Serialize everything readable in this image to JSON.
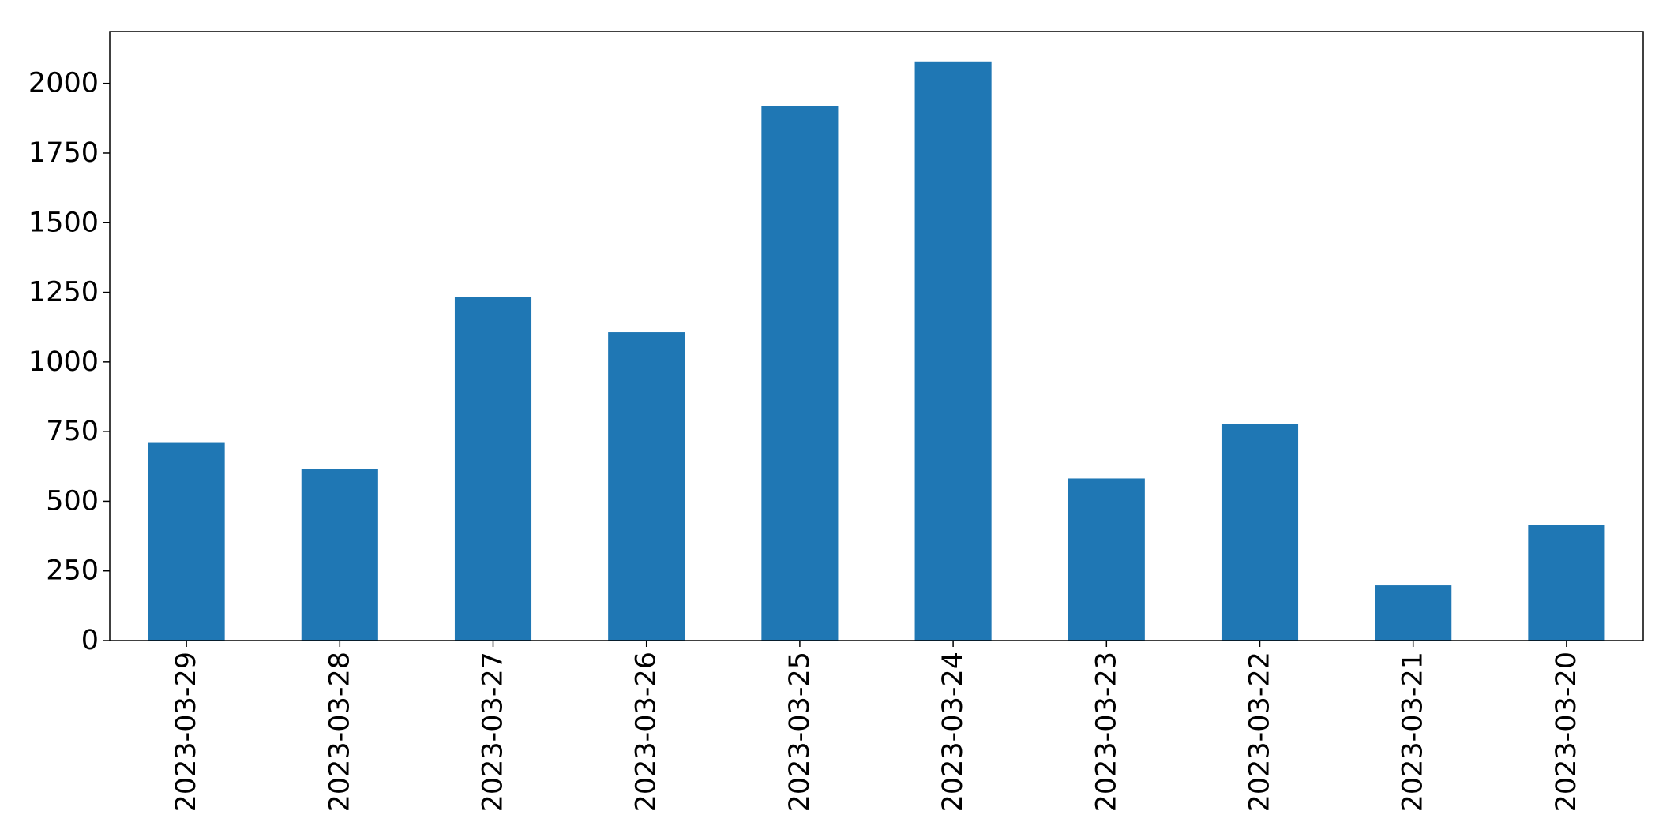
{
  "chart_data": {
    "type": "bar",
    "title": "",
    "xlabel": "",
    "ylabel": "",
    "categories": [
      "2023-03-29",
      "2023-03-28",
      "2023-03-27",
      "2023-03-26",
      "2023-03-25",
      "2023-03-24",
      "2023-03-23",
      "2023-03-22",
      "2023-03-21",
      "2023-03-20"
    ],
    "values": [
      712,
      617,
      1232,
      1107,
      1918,
      2079,
      582,
      778,
      198,
      414
    ],
    "ylim": [
      0,
      2186
    ],
    "yticks": [
      0,
      250,
      500,
      750,
      1000,
      1250,
      1500,
      1750,
      2000
    ],
    "grid": false,
    "legend": "none",
    "bar_color": "#1f77b4",
    "x_tick_rotation": "vertical"
  }
}
